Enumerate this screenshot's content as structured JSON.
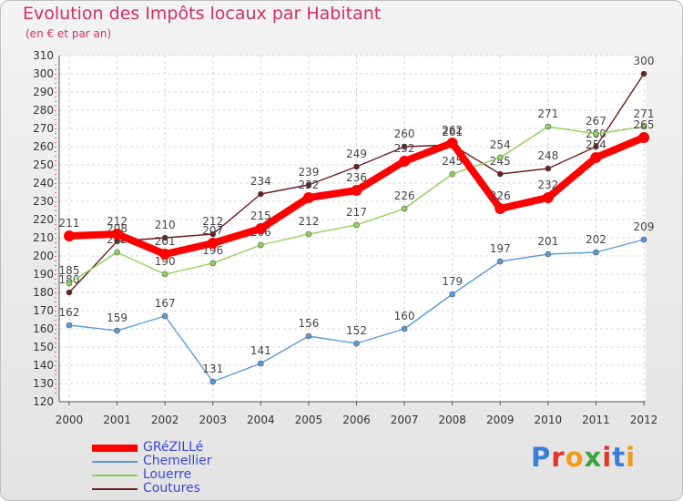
{
  "chart_data": {
    "type": "line",
    "title": "Evolution des Impôts locaux par Habitant",
    "subtitle": "(en € et par an)",
    "xlabel": "",
    "ylabel": "",
    "x": [
      "2000",
      "2001",
      "2002",
      "2003",
      "2004",
      "2005",
      "2006",
      "2007",
      "2008",
      "2009",
      "2010",
      "2011",
      "2012"
    ],
    "ylim": [
      120,
      310
    ],
    "ytick_step": 10,
    "grid": true,
    "legend_position": "bottom-left",
    "series": [
      {
        "name": "GRéZILLé",
        "color": "#ff0000",
        "values": [
          211,
          212,
          201,
          207,
          215,
          232,
          236,
          252,
          262,
          226,
          232,
          254,
          265
        ]
      },
      {
        "name": "Chemellier",
        "color": "#5b9bd5",
        "values": [
          162,
          159,
          167,
          131,
          141,
          156,
          152,
          160,
          179,
          197,
          201,
          202,
          209
        ]
      },
      {
        "name": "Louerre",
        "color": "#8fd15a",
        "values": [
          185,
          202,
          190,
          196,
          206,
          212,
          217,
          226,
          245,
          254,
          271,
          267,
          271
        ]
      },
      {
        "name": "Coutures",
        "color": "#6b1f1f",
        "values": [
          180,
          208,
          210,
          212,
          234,
          239,
          249,
          260,
          261,
          245,
          248,
          260,
          300
        ]
      }
    ]
  },
  "branding": {
    "letters": [
      "P",
      "r",
      "o",
      "x",
      "i",
      "t",
      "i"
    ]
  }
}
